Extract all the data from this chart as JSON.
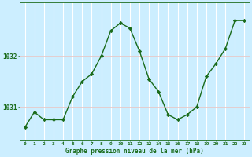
{
  "hours": [
    0,
    1,
    2,
    3,
    4,
    5,
    6,
    7,
    8,
    9,
    10,
    11,
    12,
    13,
    14,
    15,
    16,
    17,
    18,
    19,
    20,
    21,
    22,
    23
  ],
  "pressure": [
    1030.6,
    1030.9,
    1030.75,
    1030.75,
    1030.75,
    1031.2,
    1031.5,
    1031.65,
    1032.0,
    1032.5,
    1032.65,
    1032.55,
    1032.1,
    1031.55,
    1031.3,
    1030.85,
    1030.75,
    1030.85,
    1031.0,
    1031.6,
    1031.85,
    1032.15,
    1032.7,
    1032.7
  ],
  "line_color": "#1a6b1a",
  "marker_color": "#1a6b1a",
  "bg_color": "#cceeff",
  "grid_color_v": "#ffffff",
  "grid_color_h": "#e8c8c8",
  "text_color": "#1a6b1a",
  "xlabel": "Graphe pression niveau de la mer (hPa)",
  "yticks": [
    1031,
    1032
  ],
  "ylim": [
    1030.35,
    1033.05
  ],
  "xlim": [
    -0.5,
    23.5
  ],
  "figsize": [
    3.2,
    2.0
  ],
  "dpi": 100
}
